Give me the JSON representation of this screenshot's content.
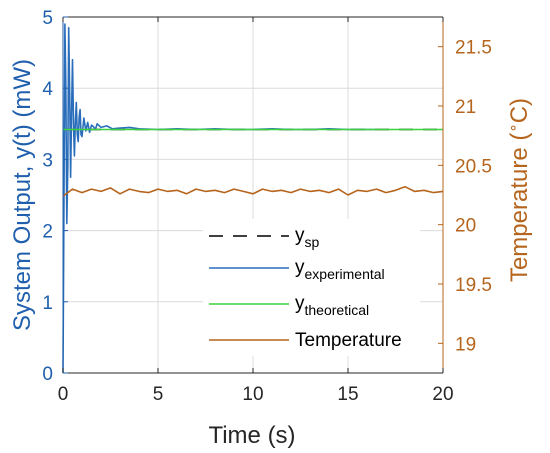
{
  "chart_data": {
    "type": "line",
    "xlabel": "Time (s)",
    "ylabel_left": "System Output, y(t) (mW)",
    "ylabel_right_main": "Temperature (",
    "ylabel_right_degree": "∘",
    "ylabel_right_unit": "C)",
    "xlim": [
      0,
      20
    ],
    "ylim_left": [
      0,
      5
    ],
    "ylim_right": [
      18.75,
      21.75
    ],
    "x_ticks": [
      "0",
      "5",
      "10",
      "15",
      "20"
    ],
    "y_left_ticks": [
      "0",
      "1",
      "2",
      "3",
      "4",
      "5"
    ],
    "y_right_ticks": [
      "19",
      "19.5",
      "20",
      "20.5",
      "21",
      "21.5"
    ],
    "grid": true,
    "legend_placement": "bottom-right",
    "colors": {
      "left_axis": "#1f5fad",
      "right_axis": "#b5651d",
      "grid": "#dcdcdc",
      "axis": "#262626"
    },
    "series": [
      {
        "name": "y",
        "name_sub": "sp",
        "color": "#000000",
        "dash": true,
        "axis": "left",
        "x": [
          0,
          20
        ],
        "y": [
          3.42,
          3.42
        ]
      },
      {
        "name": "y",
        "name_sub": "experimental",
        "color": "#2a6ebb",
        "axis": "left",
        "x": [
          0,
          0.05,
          0.1,
          0.15,
          0.2,
          0.25,
          0.3,
          0.35,
          0.4,
          0.45,
          0.5,
          0.55,
          0.6,
          0.65,
          0.7,
          0.75,
          0.8,
          0.85,
          0.9,
          0.95,
          1.0,
          1.1,
          1.2,
          1.3,
          1.4,
          1.5,
          1.6,
          1.7,
          1.8,
          2.0,
          2.3,
          2.6,
          3.0,
          3.5,
          4.0,
          5.0,
          6.0,
          7.0,
          8.0,
          9.0,
          10.0,
          11.0,
          12.0,
          13.0,
          14.0,
          15.0,
          16.0,
          16.5
        ],
        "y": [
          0,
          2.5,
          4.9,
          4.1,
          2.1,
          2.9,
          4.85,
          3.9,
          2.75,
          3.6,
          4.4,
          3.5,
          3.05,
          3.5,
          3.8,
          3.35,
          3.25,
          3.6,
          3.7,
          3.35,
          3.32,
          3.58,
          3.4,
          3.52,
          3.38,
          3.48,
          3.46,
          3.42,
          3.5,
          3.45,
          3.47,
          3.43,
          3.44,
          3.45,
          3.43,
          3.42,
          3.43,
          3.42,
          3.43,
          3.42,
          3.42,
          3.43,
          3.42,
          3.42,
          3.43,
          3.42,
          3.42,
          3.42
        ]
      },
      {
        "name": "y",
        "name_sub": "theoretical",
        "color": "#3cd23c",
        "axis": "left",
        "x": [
          0,
          20
        ],
        "y": [
          3.42,
          3.42
        ]
      },
      {
        "name": "Temperature",
        "color": "#b5651d",
        "axis": "right",
        "x": [
          0,
          0.5,
          1.0,
          1.5,
          2.0,
          2.5,
          3.0,
          3.5,
          4.0,
          4.5,
          5.0,
          5.5,
          6.0,
          6.5,
          7.0,
          7.5,
          8.0,
          8.5,
          9.0,
          9.5,
          10.0,
          10.5,
          11.0,
          11.5,
          12.0,
          12.5,
          13.0,
          13.5,
          14.0,
          14.5,
          15.0,
          15.5,
          16.0,
          16.5,
          17.0,
          17.5,
          18.0,
          18.5,
          19.0,
          19.5,
          20.0
        ],
        "y": [
          20.24,
          20.3,
          20.27,
          20.3,
          20.28,
          20.31,
          20.26,
          20.3,
          20.28,
          20.27,
          20.3,
          20.28,
          20.29,
          20.26,
          20.3,
          20.28,
          20.29,
          20.27,
          20.3,
          20.28,
          20.26,
          20.3,
          20.28,
          20.29,
          20.27,
          20.3,
          20.28,
          20.29,
          20.27,
          20.3,
          20.25,
          20.29,
          20.28,
          20.3,
          20.27,
          20.29,
          20.32,
          20.28,
          20.29,
          20.27,
          20.28
        ]
      }
    ]
  }
}
